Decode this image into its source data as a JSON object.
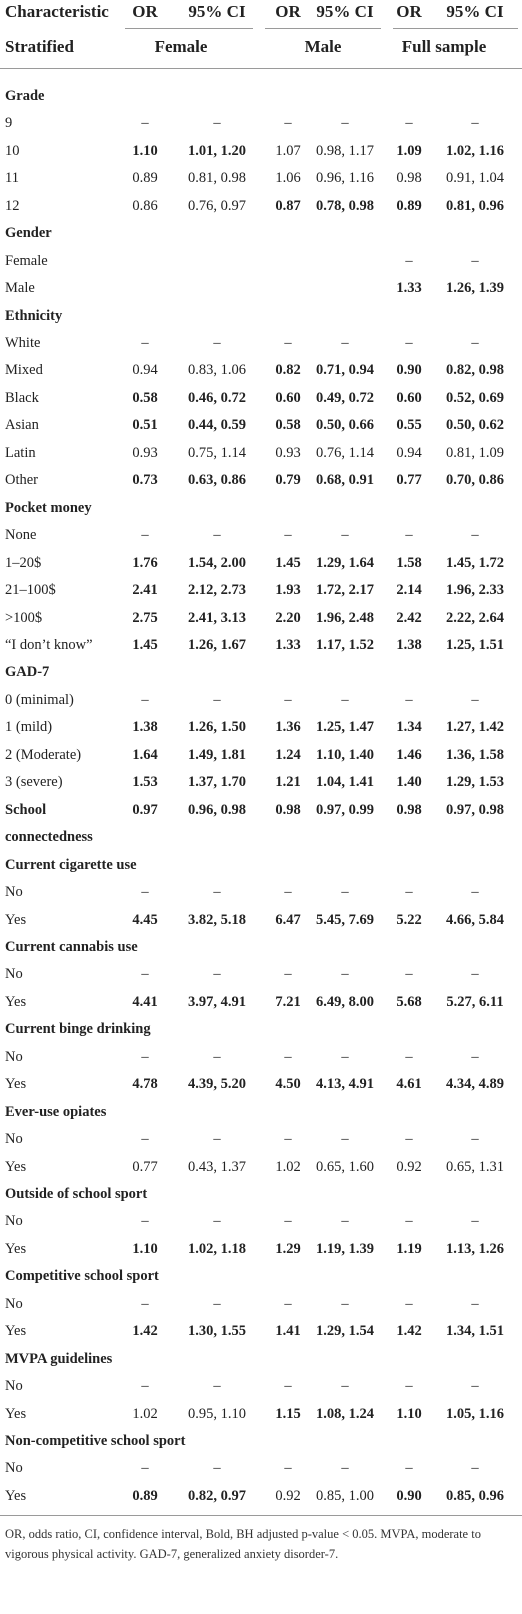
{
  "table": {
    "header": [
      "Characteristic",
      "OR",
      "95% CI",
      "OR",
      "95% CI",
      "OR",
      "95% CI"
    ],
    "subheader": [
      "Stratified",
      "Female",
      "Male",
      "Full sample"
    ],
    "rows": [
      {
        "label": "Grade",
        "heading": true
      },
      {
        "label": "9",
        "cells": [
          "–",
          "–",
          "–",
          "–",
          "–",
          "–"
        ],
        "bold": [
          false,
          false,
          false
        ]
      },
      {
        "label": "10",
        "cells": [
          "1.10",
          "1.01, 1.20",
          "1.07",
          "0.98, 1.17",
          "1.09",
          "1.02, 1.16"
        ],
        "bold": [
          true,
          false,
          true
        ]
      },
      {
        "label": "11",
        "cells": [
          "0.89",
          "0.81, 0.98",
          "1.06",
          "0.96, 1.16",
          "0.98",
          "0.91, 1.04"
        ],
        "bold": [
          false,
          false,
          false
        ]
      },
      {
        "label": "12",
        "cells": [
          "0.86",
          "0.76, 0.97",
          "0.87",
          "0.78, 0.98",
          "0.89",
          "0.81, 0.96"
        ],
        "bold": [
          false,
          true,
          true
        ]
      },
      {
        "label": "Gender",
        "heading": true
      },
      {
        "label": "Female",
        "cells": [
          null,
          null,
          null,
          null,
          "–",
          "–"
        ],
        "bold": [
          false,
          false,
          false
        ]
      },
      {
        "label": "Male",
        "cells": [
          null,
          null,
          null,
          null,
          "1.33",
          "1.26, 1.39"
        ],
        "bold": [
          false,
          false,
          true
        ]
      },
      {
        "label": "Ethnicity",
        "heading": true
      },
      {
        "label": "White",
        "cells": [
          "–",
          "–",
          "–",
          "–",
          "–",
          "–"
        ],
        "bold": [
          false,
          false,
          false
        ]
      },
      {
        "label": "Mixed",
        "cells": [
          "0.94",
          "0.83, 1.06",
          "0.82",
          "0.71, 0.94",
          "0.90",
          "0.82, 0.98"
        ],
        "bold": [
          false,
          true,
          true
        ]
      },
      {
        "label": "Black",
        "cells": [
          "0.58",
          "0.46, 0.72",
          "0.60",
          "0.49, 0.72",
          "0.60",
          "0.52, 0.69"
        ],
        "bold": [
          true,
          true,
          true
        ]
      },
      {
        "label": "Asian",
        "cells": [
          "0.51",
          "0.44, 0.59",
          "0.58",
          "0.50, 0.66",
          "0.55",
          "0.50, 0.62"
        ],
        "bold": [
          true,
          true,
          true
        ]
      },
      {
        "label": "Latin",
        "cells": [
          "0.93",
          "0.75, 1.14",
          "0.93",
          "0.76, 1.14",
          "0.94",
          "0.81, 1.09"
        ],
        "bold": [
          false,
          false,
          false
        ]
      },
      {
        "label": "Other",
        "cells": [
          "0.73",
          "0.63, 0.86",
          "0.79",
          "0.68, 0.91",
          "0.77",
          "0.70, 0.86"
        ],
        "bold": [
          true,
          true,
          true
        ]
      },
      {
        "label": "Pocket money",
        "heading": true
      },
      {
        "label": "None",
        "cells": [
          "–",
          "–",
          "–",
          "–",
          "–",
          "–"
        ],
        "bold": [
          false,
          false,
          false
        ]
      },
      {
        "label": "1–20$",
        "cells": [
          "1.76",
          "1.54, 2.00",
          "1.45",
          "1.29, 1.64",
          "1.58",
          "1.45, 1.72"
        ],
        "bold": [
          true,
          true,
          true
        ]
      },
      {
        "label": "21–100$",
        "cells": [
          "2.41",
          "2.12, 2.73",
          "1.93",
          "1.72, 2.17",
          "2.14",
          "1.96, 2.33"
        ],
        "bold": [
          true,
          true,
          true
        ]
      },
      {
        "label": ">100$",
        "cells": [
          "2.75",
          "2.41, 3.13",
          "2.20",
          "1.96, 2.48",
          "2.42",
          "2.22, 2.64"
        ],
        "bold": [
          true,
          true,
          true
        ]
      },
      {
        "label": "“I don’t know”",
        "cells": [
          "1.45",
          "1.26, 1.67",
          "1.33",
          "1.17, 1.52",
          "1.38",
          "1.25, 1.51"
        ],
        "bold": [
          true,
          true,
          true
        ]
      },
      {
        "label": "GAD-7",
        "heading": true
      },
      {
        "label": "0 (minimal)",
        "cells": [
          "–",
          "–",
          "–",
          "–",
          "–",
          "–"
        ],
        "bold": [
          false,
          false,
          false
        ]
      },
      {
        "label": "1 (mild)",
        "cells": [
          "1.38",
          "1.26, 1.50",
          "1.36",
          "1.25, 1.47",
          "1.34",
          "1.27, 1.42"
        ],
        "bold": [
          true,
          true,
          true
        ]
      },
      {
        "label": "2 (Moderate)",
        "cells": [
          "1.64",
          "1.49, 1.81",
          "1.24",
          "1.10, 1.40",
          "1.46",
          "1.36, 1.58"
        ],
        "bold": [
          true,
          true,
          true
        ]
      },
      {
        "label": "3 (severe)",
        "cells": [
          "1.53",
          "1.37, 1.70",
          "1.21",
          "1.04, 1.41",
          "1.40",
          "1.29, 1.53"
        ],
        "bold": [
          true,
          true,
          true
        ]
      },
      {
        "label": "School connectedness",
        "labelBold": true,
        "cells": [
          "0.97",
          "0.96, 0.98",
          "0.98",
          "0.97, 0.99",
          "0.98",
          "0.97, 0.98"
        ],
        "bold": [
          true,
          true,
          true
        ]
      },
      {
        "label": "Current cigarette use",
        "heading": true
      },
      {
        "label": "No",
        "cells": [
          "–",
          "–",
          "–",
          "–",
          "–",
          "–"
        ],
        "bold": [
          false,
          false,
          false
        ]
      },
      {
        "label": "Yes",
        "cells": [
          "4.45",
          "3.82, 5.18",
          "6.47",
          "5.45, 7.69",
          "5.22",
          "4.66, 5.84"
        ],
        "bold": [
          true,
          true,
          true
        ]
      },
      {
        "label": "Current cannabis use",
        "heading": true
      },
      {
        "label": "No",
        "cells": [
          "–",
          "–",
          "–",
          "–",
          "–",
          "–"
        ],
        "bold": [
          false,
          false,
          false
        ]
      },
      {
        "label": "Yes",
        "cells": [
          "4.41",
          "3.97, 4.91",
          "7.21",
          "6.49, 8.00",
          "5.68",
          "5.27, 6.11"
        ],
        "bold": [
          true,
          true,
          true
        ]
      },
      {
        "label": "Current binge drinking",
        "heading": true
      },
      {
        "label": "No",
        "cells": [
          "–",
          "–",
          "–",
          "–",
          "–",
          "–"
        ],
        "bold": [
          false,
          false,
          false
        ]
      },
      {
        "label": "Yes",
        "cells": [
          "4.78",
          "4.39, 5.20",
          "4.50",
          "4.13, 4.91",
          "4.61",
          "4.34, 4.89"
        ],
        "bold": [
          true,
          true,
          true
        ]
      },
      {
        "label": "Ever-use opiates",
        "heading": true
      },
      {
        "label": "No",
        "cells": [
          "–",
          "–",
          "–",
          "–",
          "–",
          "–"
        ],
        "bold": [
          false,
          false,
          false
        ]
      },
      {
        "label": "Yes",
        "cells": [
          "0.77",
          "0.43, 1.37",
          "1.02",
          "0.65, 1.60",
          "0.92",
          "0.65, 1.31"
        ],
        "bold": [
          false,
          false,
          false
        ]
      },
      {
        "label": "Outside of school sport",
        "heading": true
      },
      {
        "label": "No",
        "cells": [
          "–",
          "–",
          "–",
          "–",
          "–",
          "–"
        ],
        "bold": [
          false,
          false,
          false
        ]
      },
      {
        "label": "Yes",
        "cells": [
          "1.10",
          "1.02, 1.18",
          "1.29",
          "1.19, 1.39",
          "1.19",
          "1.13, 1.26"
        ],
        "bold": [
          true,
          true,
          true
        ]
      },
      {
        "label": "Competitive school sport",
        "heading": true
      },
      {
        "label": "No",
        "cells": [
          "–",
          "–",
          "–",
          "–",
          "–",
          "–"
        ],
        "bold": [
          false,
          false,
          false
        ]
      },
      {
        "label": "Yes",
        "cells": [
          "1.42",
          "1.30, 1.55",
          "1.41",
          "1.29, 1.54",
          "1.42",
          "1.34, 1.51"
        ],
        "bold": [
          true,
          true,
          true
        ]
      },
      {
        "label": "MVPA guidelines",
        "heading": true
      },
      {
        "label": "No",
        "cells": [
          "–",
          "–",
          "–",
          "–",
          "–",
          "–"
        ],
        "bold": [
          false,
          false,
          false
        ]
      },
      {
        "label": "Yes",
        "cells": [
          "1.02",
          "0.95, 1.10",
          "1.15",
          "1.08, 1.24",
          "1.10",
          "1.05, 1.16"
        ],
        "bold": [
          false,
          true,
          true
        ]
      },
      {
        "label": "Non-competitive school sport",
        "heading": true
      },
      {
        "label": "No",
        "cells": [
          "–",
          "–",
          "–",
          "–",
          "–",
          "–"
        ],
        "bold": [
          false,
          false,
          false
        ]
      },
      {
        "label": "Yes",
        "cells": [
          "0.89",
          "0.82, 0.97",
          "0.92",
          "0.85, 1.00",
          "0.90",
          "0.85, 0.96"
        ],
        "bold": [
          true,
          false,
          true
        ]
      }
    ],
    "footnote": "OR, odds ratio, CI, confidence interval, Bold, BH adjusted p-value < 0.05. MVPA, moderate to vigorous physical activity. GAD-7, generalized anxiety disorder-7."
  }
}
